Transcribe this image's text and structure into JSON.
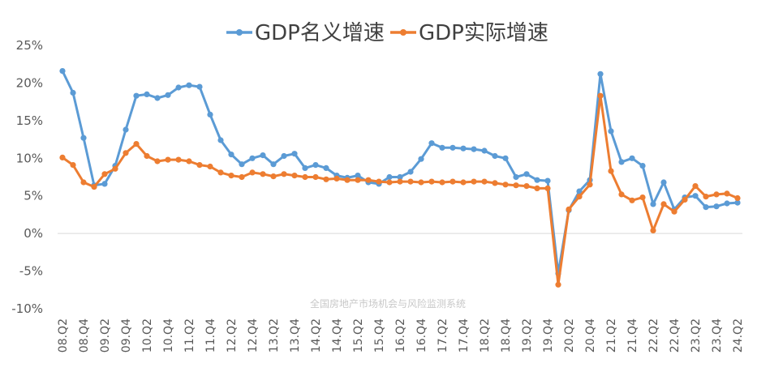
{
  "chart_data": {
    "type": "line",
    "title": "",
    "xlabel": "",
    "ylabel": "",
    "ylim": [
      -10,
      25
    ],
    "y_ticks": [
      "-10%",
      "-5%",
      "0%",
      "5%",
      "10%",
      "15%",
      "20%",
      "25%"
    ],
    "y_tick_values": [
      -10,
      -5,
      0,
      5,
      10,
      15,
      20,
      25
    ],
    "x_tick_labels": [
      "08.Q2",
      "08.Q4",
      "09.Q2",
      "09.Q4",
      "10.Q2",
      "10.Q4",
      "11.Q2",
      "11.Q4",
      "12.Q2",
      "12.Q4",
      "13.Q2",
      "13.Q4",
      "14.Q2",
      "14.Q4",
      "15.Q2",
      "15.Q4",
      "16.Q2",
      "16.Q4",
      "17.Q2",
      "17.Q4",
      "18.Q2",
      "18.Q4",
      "19.Q2",
      "19.Q4",
      "20.Q2",
      "20.Q4",
      "21.Q2",
      "21.Q4",
      "22.Q2",
      "22.Q4",
      "23.Q2",
      "23.Q4",
      "24.Q2"
    ],
    "grid": false,
    "legend_position": "top",
    "series": [
      {
        "name": "GDP名义增速",
        "color": "#5b9bd5",
        "values": [
          21.6,
          18.7,
          12.7,
          6.4,
          6.6,
          9.0,
          13.8,
          18.3,
          18.5,
          18.0,
          18.4,
          19.4,
          19.7,
          19.5,
          15.8,
          12.4,
          10.5,
          9.2,
          10.0,
          10.4,
          9.2,
          10.3,
          10.6,
          8.7,
          9.1,
          8.7,
          7.7,
          7.4,
          7.7,
          6.8,
          6.6,
          7.5,
          7.5,
          8.2,
          9.9,
          12.0,
          11.4,
          11.4,
          11.3,
          11.2,
          11.0,
          10.3,
          10.0,
          7.5,
          7.9,
          7.1,
          7.0,
          -5.3,
          3.1,
          5.6,
          7.1,
          21.2,
          13.6,
          9.5,
          10.0,
          9.0,
          3.9,
          6.8,
          3.2,
          4.8,
          5.0,
          3.5,
          3.6,
          4.0,
          4.1
        ]
      },
      {
        "name": "GDP实际增速",
        "color": "#ed7d31",
        "values": [
          10.1,
          9.1,
          6.8,
          6.2,
          7.9,
          8.6,
          10.7,
          11.9,
          10.3,
          9.6,
          9.8,
          9.8,
          9.6,
          9.1,
          8.9,
          8.1,
          7.7,
          7.5,
          8.1,
          7.9,
          7.6,
          7.9,
          7.7,
          7.5,
          7.5,
          7.2,
          7.3,
          7.1,
          7.1,
          7.1,
          6.9,
          6.8,
          6.9,
          6.9,
          6.8,
          6.9,
          6.8,
          6.9,
          6.8,
          6.9,
          6.9,
          6.7,
          6.5,
          6.4,
          6.3,
          6.0,
          6.0,
          -6.8,
          3.2,
          4.9,
          6.5,
          18.3,
          8.3,
          5.2,
          4.4,
          4.8,
          0.4,
          3.9,
          2.9,
          4.5,
          6.3,
          4.9,
          5.2,
          5.3,
          4.7
        ]
      }
    ]
  },
  "watermark": "全国房地产市场机会与风险监测系统"
}
